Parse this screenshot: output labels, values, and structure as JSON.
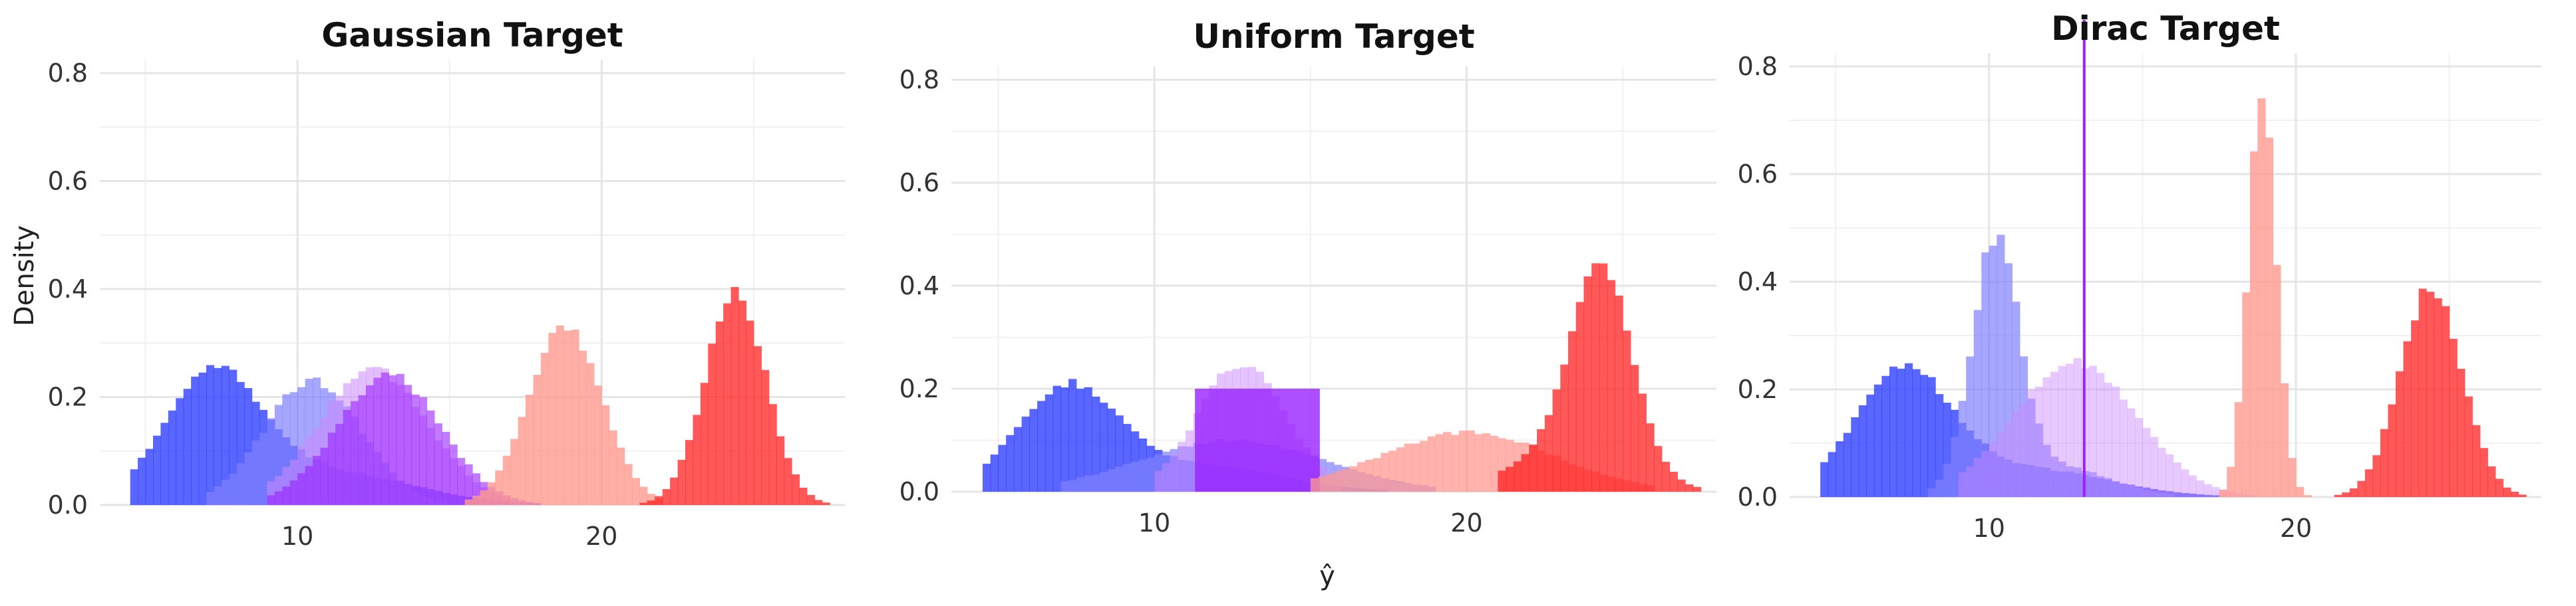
{
  "chart_data": [
    {
      "type": "histogram",
      "title": "Gaussian Target",
      "ylabel": "Density",
      "xlabel": "",
      "xlim": [
        3.5,
        28
      ],
      "ylim": [
        0,
        0.8
      ],
      "x_ticks": [
        10,
        20
      ],
      "x_tick_labels": [
        "10",
        "20"
      ],
      "y_ticks": [
        0,
        0.2,
        0.4,
        0.6,
        0.8
      ],
      "y_tick_labels": [
        "0.0",
        "0.2",
        "0.4",
        "0.6",
        "0.8"
      ],
      "grid": true,
      "series": [
        {
          "color": "#2233ff",
          "opacity": 0.75,
          "kind": "gauss",
          "mean": 7.2,
          "sd": 1.6,
          "peak": 0.23,
          "mixes": [
            {
              "mean": 11.0,
              "sd": 2.8,
              "peak": 0.06
            }
          ],
          "range": [
            4.5,
            18
          ]
        },
        {
          "color": "#8080ff",
          "opacity": 0.7,
          "kind": "gauss",
          "mean": 10.5,
          "sd": 1.6,
          "peak": 0.23,
          "range": [
            7,
            17
          ]
        },
        {
          "color": "#cc88ff",
          "opacity": 0.55,
          "kind": "gauss",
          "mean": 12.5,
          "sd": 1.8,
          "peak": 0.25,
          "range": [
            9,
            18
          ]
        },
        {
          "color": "#9922ff",
          "opacity": 0.6,
          "kind": "gauss",
          "mean": 13.0,
          "sd": 1.7,
          "peak": 0.24,
          "range": [
            9,
            18
          ]
        },
        {
          "color": "#ff9a90",
          "opacity": 0.8,
          "kind": "gauss",
          "mean": 18.8,
          "sd": 1.2,
          "peak": 0.33,
          "range": [
            15.5,
            22
          ]
        },
        {
          "color": "#ff2020",
          "opacity": 0.75,
          "kind": "gauss",
          "mean": 24.4,
          "sd": 1.0,
          "peak": 0.39,
          "range": [
            21,
            27.5
          ]
        }
      ]
    },
    {
      "type": "histogram",
      "title": "Uniform Target",
      "ylabel": "",
      "xlabel": "ŷ",
      "xlim": [
        3.5,
        28
      ],
      "ylim": [
        0,
        0.8
      ],
      "x_ticks": [
        10,
        20
      ],
      "x_tick_labels": [
        "10",
        "20"
      ],
      "y_ticks": [
        0,
        0.2,
        0.4,
        0.6,
        0.8
      ],
      "y_tick_labels": [
        "0.0",
        "0.2",
        "0.4",
        "0.6",
        "0.8"
      ],
      "grid": true,
      "series": [
        {
          "color": "#2233ff",
          "opacity": 0.75,
          "kind": "gauss",
          "mean": 7.2,
          "sd": 1.6,
          "peak": 0.2,
          "mixes": [
            {
              "mean": 11.5,
              "sd": 2.5,
              "peak": 0.05
            }
          ],
          "range": [
            4.5,
            18
          ]
        },
        {
          "color": "#8080ff",
          "opacity": 0.7,
          "kind": "gauss",
          "mean": 12.5,
          "sd": 3.0,
          "peak": 0.1,
          "range": [
            7,
            19
          ]
        },
        {
          "color": "#cc88ff",
          "opacity": 0.5,
          "kind": "gauss",
          "mean": 12.8,
          "sd": 1.4,
          "peak": 0.25,
          "range": [
            10,
            16
          ]
        },
        {
          "color": "#9922ff",
          "opacity": 0.8,
          "kind": "uniform",
          "from": 11.3,
          "to": 15.3,
          "height": 0.2
        },
        {
          "color": "#ff9a90",
          "opacity": 0.75,
          "kind": "gauss",
          "mean": 20.0,
          "sd": 2.8,
          "peak": 0.115,
          "range": [
            15,
            26
          ]
        },
        {
          "color": "#ff2020",
          "opacity": 0.75,
          "kind": "gauss",
          "mean": 24.3,
          "sd": 1.0,
          "peak": 0.39,
          "mixes": [
            {
              "mean": 23.0,
              "sd": 2.0,
              "peak": 0.06
            }
          ],
          "range": [
            21,
            27.5
          ]
        }
      ]
    },
    {
      "type": "histogram",
      "title": "Dirac Target",
      "ylabel": "",
      "xlabel": "",
      "xlim": [
        3.5,
        28
      ],
      "ylim": [
        0,
        0.8
      ],
      "x_ticks": [
        10,
        20
      ],
      "x_tick_labels": [
        "10",
        "20"
      ],
      "y_ticks": [
        0,
        0.2,
        0.4,
        0.6,
        0.8
      ],
      "y_tick_labels": [
        "0.0",
        "0.2",
        "0.4",
        "0.6",
        "0.8"
      ],
      "grid": true,
      "series": [
        {
          "color": "#2233ff",
          "opacity": 0.75,
          "kind": "gauss",
          "mean": 7.2,
          "sd": 1.6,
          "peak": 0.23,
          "mixes": [
            {
              "mean": 11.5,
              "sd": 2.5,
              "peak": 0.05
            }
          ],
          "range": [
            4.5,
            18
          ]
        },
        {
          "color": "#8080ff",
          "opacity": 0.7,
          "kind": "gauss",
          "mean": 10.2,
          "sd": 0.75,
          "peak": 0.45,
          "mixes": [
            {
              "mean": 12,
              "sd": 1.8,
              "peak": 0.06
            }
          ],
          "range": [
            8,
            16
          ]
        },
        {
          "color": "#cc88ff",
          "opacity": 0.45,
          "kind": "gauss",
          "mean": 12.8,
          "sd": 2.0,
          "peak": 0.25,
          "range": [
            9,
            19
          ]
        },
        {
          "color": "#ff9a90",
          "opacity": 0.8,
          "kind": "gauss",
          "mean": 18.9,
          "sd": 0.45,
          "peak": 0.77,
          "range": [
            17,
            21
          ]
        },
        {
          "color": "#ff2020",
          "opacity": 0.75,
          "kind": "gauss",
          "mean": 24.4,
          "sd": 1.0,
          "peak": 0.39,
          "range": [
            21,
            27.5
          ]
        },
        {
          "color": "#9922ff",
          "opacity": 1.0,
          "kind": "dirac",
          "at": 13.1
        }
      ]
    }
  ]
}
